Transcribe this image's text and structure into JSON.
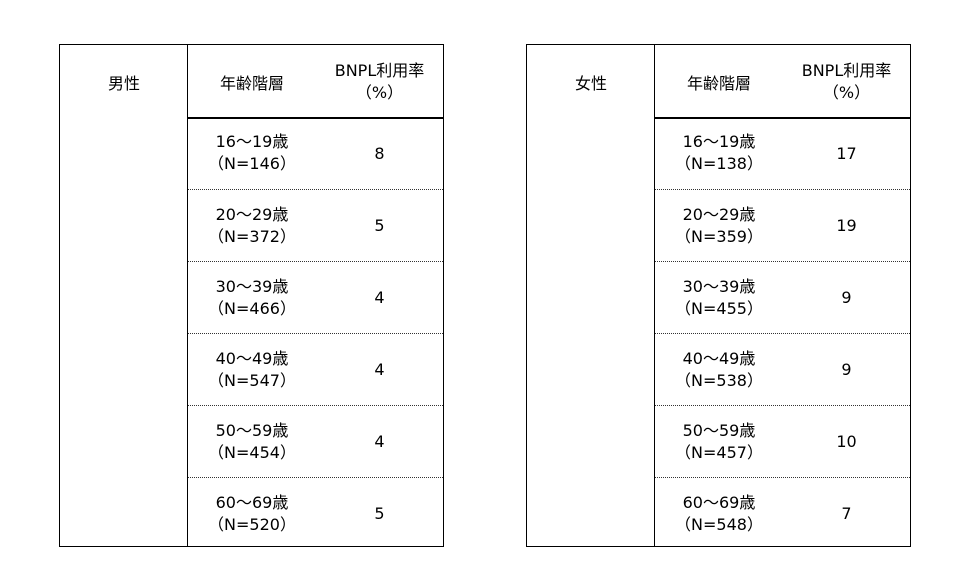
{
  "tables": [
    {
      "gender": "男性",
      "age_header": "年齢階層",
      "rate_header_line1": "BNPL利用率",
      "rate_header_line2": "（%）",
      "rows": [
        {
          "age": "16～19歳",
          "n": "（N=146）",
          "rate": "8"
        },
        {
          "age": "20～29歳",
          "n": "（N=372）",
          "rate": "5"
        },
        {
          "age": "30～39歳",
          "n": "（N=466）",
          "rate": "4"
        },
        {
          "age": "40～49歳",
          "n": "（N=547）",
          "rate": "4"
        },
        {
          "age": "50～59歳",
          "n": "（N=454）",
          "rate": "4"
        },
        {
          "age": "60～69歳",
          "n": "（N=520）",
          "rate": "5"
        }
      ]
    },
    {
      "gender": "女性",
      "age_header": "年齢階層",
      "rate_header_line1": "BNPL利用率",
      "rate_header_line2": "（%）",
      "rows": [
        {
          "age": "16～19歳",
          "n": "（N=138）",
          "rate": "17"
        },
        {
          "age": "20～29歳",
          "n": "（N=359）",
          "rate": "19"
        },
        {
          "age": "30～39歳",
          "n": "（N=455）",
          "rate": "9"
        },
        {
          "age": "40～49歳",
          "n": "（N=538）",
          "rate": "9"
        },
        {
          "age": "50～59歳",
          "n": "（N=457）",
          "rate": "10"
        },
        {
          "age": "60～69歳",
          "n": "（N=548）",
          "rate": "7"
        }
      ]
    }
  ]
}
